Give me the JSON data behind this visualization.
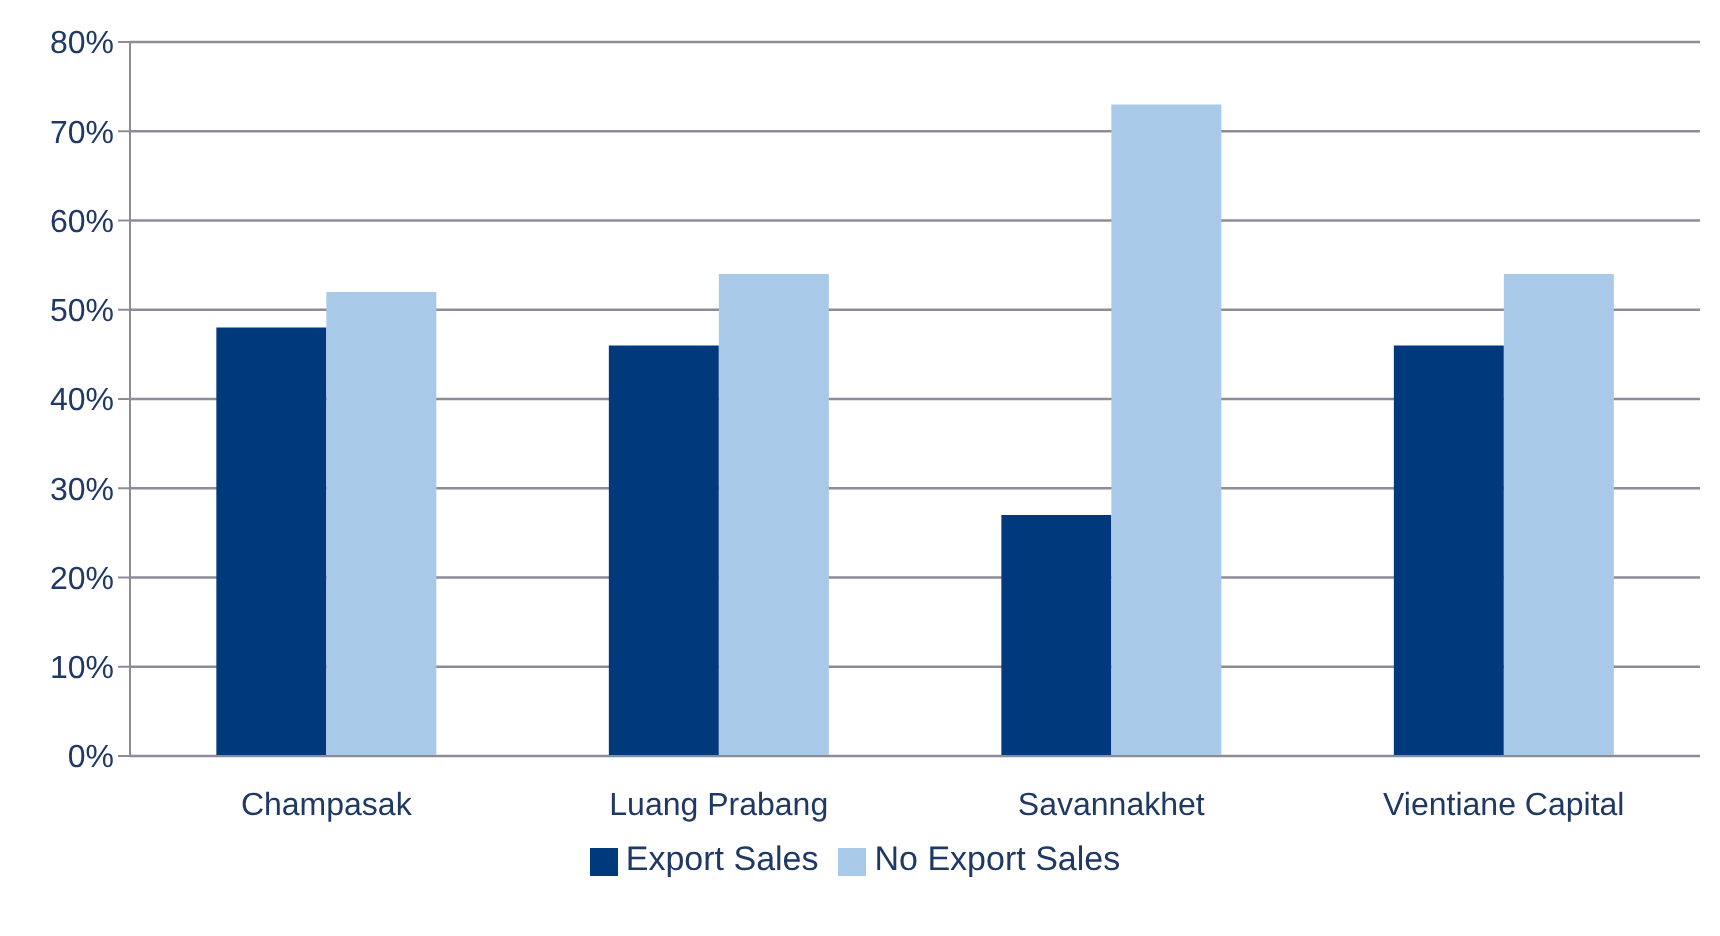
{
  "chart_data": {
    "type": "bar",
    "categories": [
      "Champasak",
      "Luang Prabang",
      "Savannakhet",
      "Vientiane Capital"
    ],
    "series": [
      {
        "name": "Export Sales",
        "color": "#003a7d",
        "values": [
          48,
          46,
          27,
          46
        ]
      },
      {
        "name": "No Export Sales",
        "color": "#a9c9e8",
        "values": [
          52,
          54,
          73,
          54
        ]
      }
    ],
    "ylim": [
      0,
      80
    ],
    "yticks": [
      {
        "value": 0,
        "label": "0%"
      },
      {
        "value": 10,
        "label": "10%"
      },
      {
        "value": 20,
        "label": "20%"
      },
      {
        "value": 30,
        "label": "30%"
      },
      {
        "value": 40,
        "label": "40%"
      },
      {
        "value": 50,
        "label": "50%"
      },
      {
        "value": 60,
        "label": "60%"
      },
      {
        "value": 70,
        "label": "70%"
      },
      {
        "value": 80,
        "label": "80%"
      }
    ],
    "grid": "y",
    "legend": "bottom"
  }
}
